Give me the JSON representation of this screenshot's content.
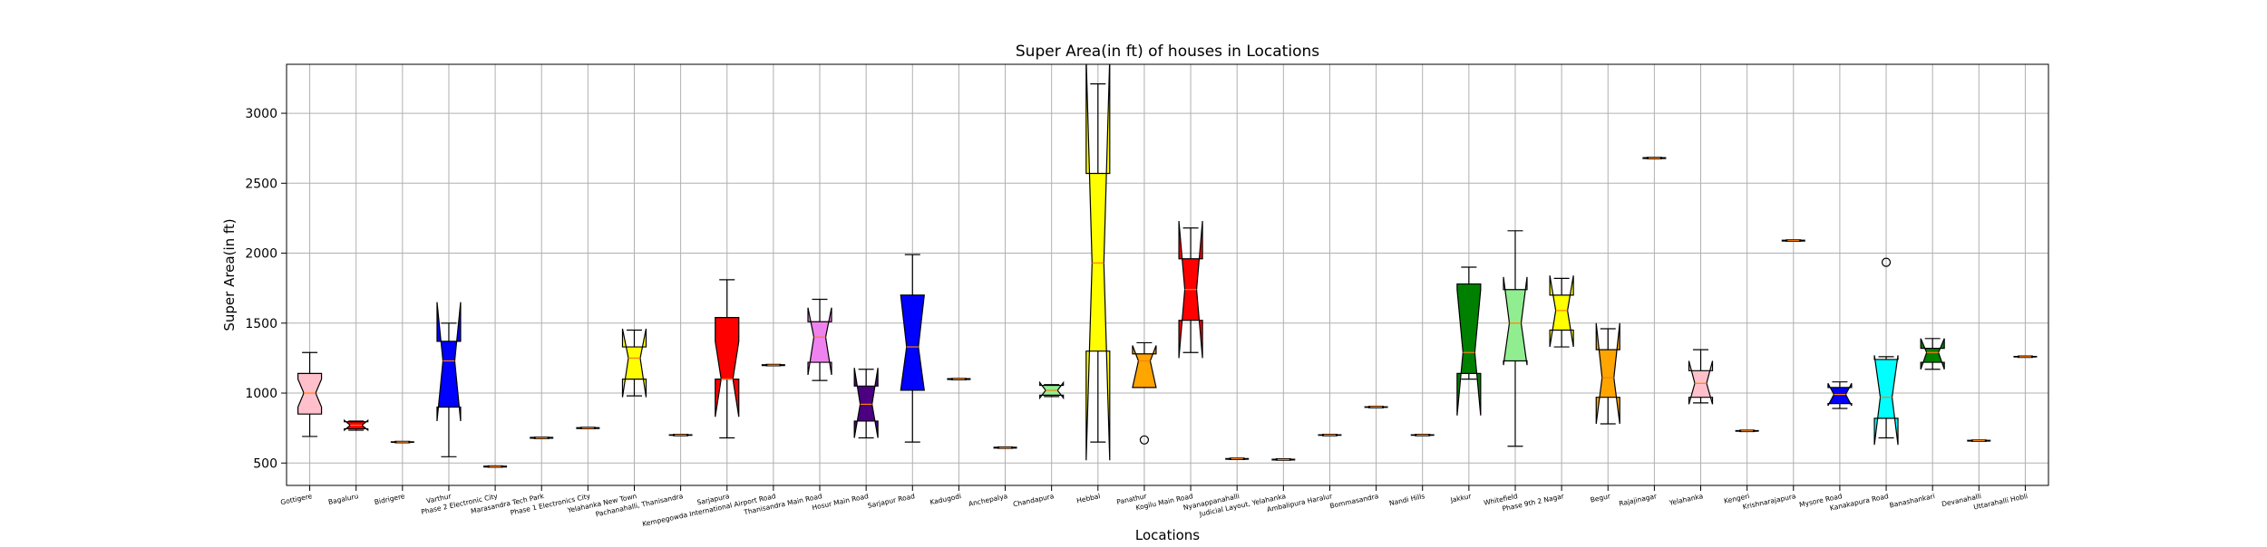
{
  "chart_data": {
    "type": "boxplot",
    "title": "Super Area(in ft) of houses in Locations",
    "xlabel": "Locations",
    "ylabel": "Super Area(in ft)",
    "ylim": [
      340,
      3350
    ],
    "yticks": [
      500,
      1000,
      1500,
      2000,
      2500,
      3000
    ],
    "grid": true,
    "legend": "none",
    "notched": true,
    "median_color": "#ff7f0e",
    "categories": [
      "Gottigere",
      "Bagaluru",
      "Bidrigere",
      "Varthur",
      "Phase 2 Electronic City",
      "Marasandra Tech Park",
      "Phase 1 Electronics City",
      "Yelahanka New Town",
      "Pachanahalli, Thanisandra",
      "Sarjapura",
      "Kempegowda International Airport Road",
      "Thanisandra Main Road",
      "Hosur Main Road",
      "Sarjapur Road",
      "Kadugodi",
      "Anchepalya",
      "Chandapura",
      "Hebbal",
      "Panathur",
      "Kogilu Main Road",
      "Nyanappanahalli",
      "Judicial Layout, Yelahanka",
      "Ambalipura Haralur",
      "Bommasandra",
      "Nandi Hills",
      "Jakkur",
      "Whitefield",
      "Phase 9th 2 Nagar",
      "Begur",
      "Rajajinagar",
      "Yelahanka",
      "Kengeri",
      "Krishnarajapura",
      "Mysore Road",
      "Kanakapura Road",
      "Banashankari",
      "Devanahalli",
      "Uttarahalli Hobli"
    ],
    "boxes": [
      {
        "whislo": 690,
        "q1": 850,
        "med": 1000,
        "q3": 1140,
        "whishi": 1290,
        "notch": [
          900,
          1100
        ],
        "color": "#ffc0cb",
        "fliers": []
      },
      {
        "whislo": 735,
        "q1": 745,
        "med": 770,
        "q3": 795,
        "whishi": 800,
        "notch": [
          735,
          805
        ],
        "color": "#ff0000",
        "fliers": []
      },
      {
        "whislo": 645,
        "q1": 648,
        "med": 650,
        "q3": 652,
        "whishi": 655,
        "notch": [
          648,
          652
        ],
        "color": "#008000",
        "fliers": []
      },
      {
        "whislo": 545,
        "q1": 900,
        "med": 1230,
        "q3": 1370,
        "whishi": 1500,
        "notch": [
          800,
          1650
        ],
        "color": "#0000ff",
        "fliers": []
      },
      {
        "whislo": 470,
        "q1": 472,
        "med": 475,
        "q3": 478,
        "whishi": 480,
        "notch": [
          472,
          478
        ],
        "color": "#ffff00",
        "fliers": []
      },
      {
        "whislo": 675,
        "q1": 677,
        "med": 680,
        "q3": 683,
        "whishi": 685,
        "notch": [
          677,
          683
        ],
        "color": "#800080",
        "fliers": []
      },
      {
        "whislo": 745,
        "q1": 747,
        "med": 750,
        "q3": 753,
        "whishi": 755,
        "notch": [
          747,
          753
        ],
        "color": "#ffa500",
        "fliers": []
      },
      {
        "whislo": 980,
        "q1": 1100,
        "med": 1250,
        "q3": 1330,
        "whishi": 1450,
        "notch": [
          970,
          1460
        ],
        "color": "#ffff00",
        "fliers": []
      },
      {
        "whislo": 695,
        "q1": 698,
        "med": 700,
        "q3": 702,
        "whishi": 705,
        "notch": [
          698,
          702
        ],
        "color": "#ff0000",
        "fliers": []
      },
      {
        "whislo": 680,
        "q1": 1100,
        "med": 1100,
        "q3": 1540,
        "whishi": 1810,
        "notch": [
          830,
          1370
        ],
        "color": "#ff0000",
        "fliers": []
      },
      {
        "whislo": 1195,
        "q1": 1197,
        "med": 1200,
        "q3": 1203,
        "whishi": 1205,
        "notch": [
          1197,
          1203
        ],
        "color": "#90ee90",
        "fliers": []
      },
      {
        "whislo": 1090,
        "q1": 1220,
        "med": 1400,
        "q3": 1510,
        "whishi": 1670,
        "notch": [
          1130,
          1610
        ],
        "color": "#ee82ee",
        "fliers": []
      },
      {
        "whislo": 680,
        "q1": 800,
        "med": 920,
        "q3": 1050,
        "whishi": 1170,
        "notch": [
          680,
          1180
        ],
        "color": "#4b0082",
        "fliers": []
      },
      {
        "whislo": 650,
        "q1": 1020,
        "med": 1330,
        "q3": 1700,
        "whishi": 1990,
        "notch": [
          1020,
          1700
        ],
        "color": "#0000ff",
        "fliers": []
      },
      {
        "whislo": 1095,
        "q1": 1097,
        "med": 1100,
        "q3": 1103,
        "whishi": 1105,
        "notch": [
          1097,
          1103
        ],
        "color": "#90ee90",
        "fliers": []
      },
      {
        "whislo": 605,
        "q1": 607,
        "med": 610,
        "q3": 613,
        "whishi": 615,
        "notch": [
          607,
          613
        ],
        "color": "#ffff00",
        "fliers": []
      },
      {
        "whislo": 975,
        "q1": 985,
        "med": 1020,
        "q3": 1055,
        "whishi": 1060,
        "notch": [
          965,
          1075
        ],
        "color": "#90ee90",
        "fliers": []
      },
      {
        "whislo": 650,
        "q1": 1300,
        "med": 1930,
        "q3": 2570,
        "whishi": 3210,
        "notch": [
          520,
          3400
        ],
        "color": "#ffff00",
        "fliers": []
      },
      {
        "whislo": 1040,
        "q1": 1040,
        "med": 1230,
        "q3": 1280,
        "whishi": 1360,
        "notch": [
          1040,
          1340
        ],
        "color": "#ffa500",
        "fliers": [
          665
        ]
      },
      {
        "whislo": 1290,
        "q1": 1520,
        "med": 1740,
        "q3": 1960,
        "whishi": 2180,
        "notch": [
          1250,
          2230
        ],
        "color": "#ff0000",
        "fliers": []
      },
      {
        "whislo": 525,
        "q1": 527,
        "med": 530,
        "q3": 532,
        "whishi": 535,
        "notch": [
          527,
          532
        ],
        "color": "#ffc0cb",
        "fliers": []
      },
      {
        "whislo": 520,
        "q1": 522,
        "med": 525,
        "q3": 527,
        "whishi": 530,
        "notch": [
          522,
          527
        ],
        "color": "#800080",
        "fliers": []
      },
      {
        "whislo": 695,
        "q1": 698,
        "med": 700,
        "q3": 702,
        "whishi": 705,
        "notch": [
          698,
          702
        ],
        "color": "#90ee90",
        "fliers": []
      },
      {
        "whislo": 895,
        "q1": 898,
        "med": 900,
        "q3": 902,
        "whishi": 905,
        "notch": [
          898,
          902
        ],
        "color": "#ffa500",
        "fliers": []
      },
      {
        "whislo": 695,
        "q1": 698,
        "med": 700,
        "q3": 702,
        "whishi": 705,
        "notch": [
          698,
          702
        ],
        "color": "#0000ff",
        "fliers": []
      },
      {
        "whislo": 1100,
        "q1": 1140,
        "med": 1290,
        "q3": 1780,
        "whishi": 1900,
        "notch": [
          840,
          1740
        ],
        "color": "#008000",
        "fliers": []
      },
      {
        "whislo": 620,
        "q1": 1230,
        "med": 1500,
        "q3": 1740,
        "whishi": 2160,
        "notch": [
          1200,
          1830
        ],
        "color": "#90ee90",
        "fliers": []
      },
      {
        "whislo": 1330,
        "q1": 1450,
        "med": 1590,
        "q3": 1700,
        "whishi": 1820,
        "notch": [
          1330,
          1840
        ],
        "color": "#ffff00",
        "fliers": []
      },
      {
        "whislo": 780,
        "q1": 970,
        "med": 1110,
        "q3": 1310,
        "whishi": 1460,
        "notch": [
          780,
          1500
        ],
        "color": "#ffa500",
        "fliers": []
      },
      {
        "whislo": 2675,
        "q1": 2677,
        "med": 2680,
        "q3": 2683,
        "whishi": 2685,
        "notch": [
          2677,
          2683
        ],
        "color": "#ff0000",
        "fliers": []
      },
      {
        "whislo": 930,
        "q1": 970,
        "med": 1070,
        "q3": 1160,
        "whishi": 1310,
        "notch": [
          920,
          1230
        ],
        "color": "#ffc0cb",
        "fliers": []
      },
      {
        "whislo": 725,
        "q1": 727,
        "med": 730,
        "q3": 732,
        "whishi": 735,
        "notch": [
          727,
          732
        ],
        "color": "#800080",
        "fliers": []
      },
      {
        "whislo": 2085,
        "q1": 2087,
        "med": 2090,
        "q3": 2093,
        "whishi": 2095,
        "notch": [
          2087,
          2093
        ],
        "color": "#ff0000",
        "fliers": []
      },
      {
        "whislo": 890,
        "q1": 925,
        "med": 990,
        "q3": 1040,
        "whishi": 1080,
        "notch": [
          910,
          1070
        ],
        "color": "#0000ff",
        "fliers": []
      },
      {
        "whislo": 680,
        "q1": 820,
        "med": 970,
        "q3": 1240,
        "whishi": 1260,
        "notch": [
          630,
          1270
        ],
        "color": "#00ffff",
        "fliers": [
          1935
        ]
      },
      {
        "whislo": 1170,
        "q1": 1220,
        "med": 1290,
        "q3": 1320,
        "whishi": 1390,
        "notch": [
          1170,
          1390
        ],
        "color": "#008000",
        "fliers": []
      },
      {
        "whislo": 655,
        "q1": 657,
        "med": 660,
        "q3": 662,
        "whishi": 665,
        "notch": [
          657,
          662
        ],
        "color": "#ff0000",
        "fliers": []
      },
      {
        "whislo": 1255,
        "q1": 1258,
        "med": 1260,
        "q3": 1262,
        "whishi": 1265,
        "notch": [
          1258,
          1262
        ],
        "color": "#ffa500",
        "fliers": []
      }
    ]
  }
}
